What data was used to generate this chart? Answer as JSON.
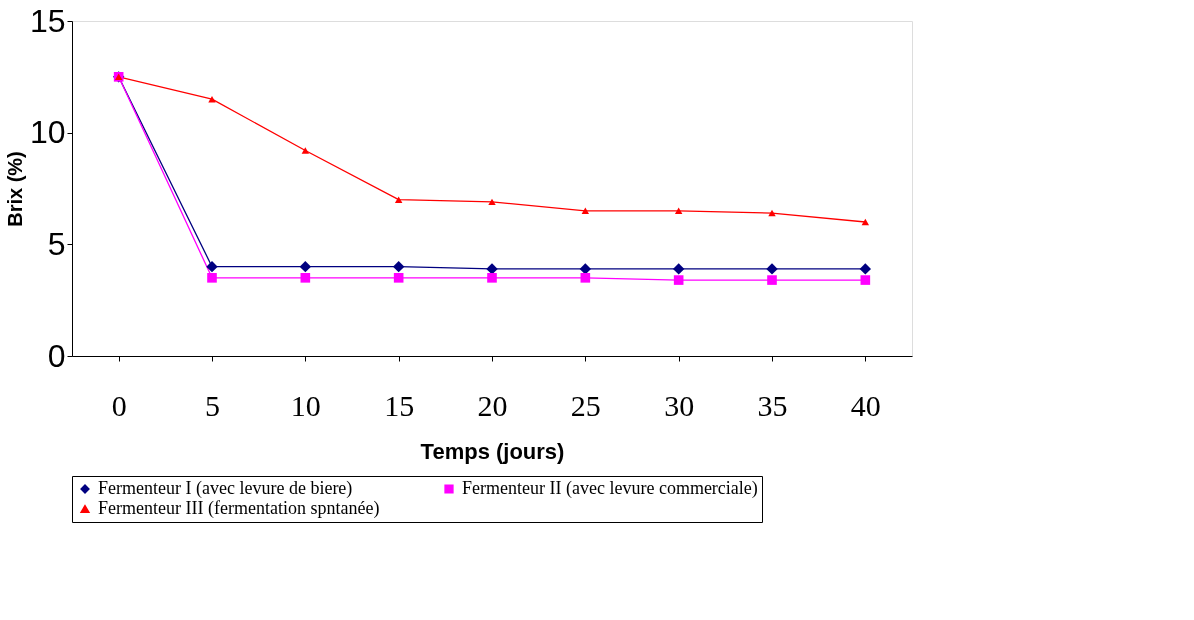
{
  "chart_data": {
    "type": "line",
    "xlabel": "Temps (jours)",
    "ylabel": "Brix (%)",
    "categories": [
      "0",
      "5",
      "10",
      "15",
      "20",
      "25",
      "30",
      "35",
      "40"
    ],
    "ylim": [
      0,
      15
    ],
    "yticks": [
      0,
      5,
      10,
      15
    ],
    "grid": false,
    "legend": "bottom",
    "series": [
      {
        "name": "Fermenteur I (avec levure de biere)",
        "color": "#000080",
        "marker": "diamond",
        "values": [
          12.5,
          4.0,
          4.0,
          4.0,
          3.9,
          3.9,
          3.9,
          3.9,
          3.9
        ]
      },
      {
        "name": "Fermenteur II (avec levure commerciale)",
        "color": "#ff00ff",
        "marker": "square",
        "values": [
          12.5,
          3.5,
          3.5,
          3.5,
          3.5,
          3.5,
          3.4,
          3.4,
          3.4
        ]
      },
      {
        "name": "Fermenteur III (fermentation spntanée)",
        "color": "#ff0000",
        "marker": "triangle",
        "values": [
          12.5,
          11.5,
          9.2,
          7.0,
          6.9,
          6.5,
          6.5,
          6.4,
          6.0
        ]
      }
    ]
  }
}
